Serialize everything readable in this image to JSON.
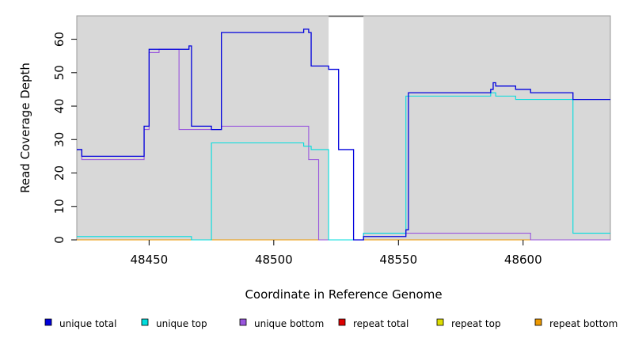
{
  "chart_data": {
    "type": "line",
    "title": "",
    "xlabel": "Coordinate in Reference Genome",
    "ylabel": "Read Coverage Depth",
    "xlim": [
      48421,
      48635
    ],
    "ylim": [
      0,
      67
    ],
    "xticks": [
      48450,
      48500,
      48550,
      48600
    ],
    "yticks": [
      0,
      10,
      20,
      30,
      40,
      50,
      60
    ],
    "background_color": "#d8d8d8",
    "gap_regions": [
      [
        48522,
        48536
      ]
    ],
    "step": true,
    "legend_position": "bottom",
    "series": [
      {
        "name": "unique total",
        "color": "#0000dd",
        "x": [
          48421,
          48423,
          48448,
          48450,
          48466,
          48467,
          48475,
          48479,
          48512,
          48514,
          48515,
          48522,
          48526,
          48532,
          48536,
          48553,
          48554,
          48587,
          48588,
          48589,
          48597,
          48603,
          48620
        ],
        "y": [
          27,
          25,
          34,
          57,
          58,
          34,
          33,
          62,
          63,
          62,
          52,
          51,
          27,
          0,
          1,
          3,
          44,
          45,
          47,
          46,
          45,
          44,
          42
        ]
      },
      {
        "name": "unique top",
        "color": "#00dddd",
        "x": [
          48421,
          48467,
          48475,
          48512,
          48515,
          48518,
          48522,
          48536,
          48553,
          48587,
          48589,
          48597,
          48603,
          48620
        ],
        "y": [
          1,
          0,
          29,
          28,
          27,
          27,
          0,
          2,
          43,
          44,
          43,
          42,
          42,
          2
        ],
        "end_x": 48635
      },
      {
        "name": "unique bottom",
        "color": "#9955dd",
        "x": [
          48421,
          48423,
          48448,
          48450,
          48454,
          48462,
          48479,
          48514,
          48518,
          48522,
          48536,
          48603
        ],
        "y": [
          27,
          24,
          33,
          56,
          57,
          33,
          34,
          24,
          0,
          0,
          2,
          0
        ],
        "end_x": 48635
      },
      {
        "name": "repeat total",
        "color": "#dd0000",
        "x": [
          48421,
          48522,
          48536
        ],
        "y": [
          0,
          0,
          0
        ],
        "end_x": 48635
      },
      {
        "name": "repeat top",
        "color": "#dddd00",
        "x": [
          48421,
          48522,
          48536
        ],
        "y": [
          0,
          0,
          0
        ],
        "end_x": 48635
      },
      {
        "name": "repeat bottom",
        "color": "#ee9900",
        "x": [
          48421,
          48522,
          48536
        ],
        "y": [
          0,
          0,
          0
        ],
        "end_x": 48635
      }
    ]
  }
}
